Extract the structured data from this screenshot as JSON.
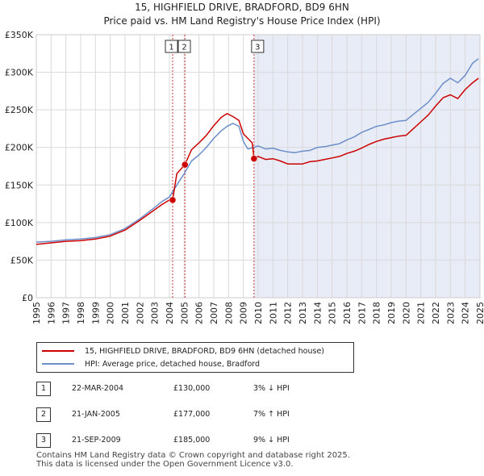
{
  "title_line1": "15, HIGHFIELD DRIVE, BRADFORD, BD9 6HN",
  "title_line2": "Price paid vs. HM Land Registry's House Price Index (HPI)",
  "legend": {
    "property": "15, HIGHFIELD DRIVE, BRADFORD, BD9 6HN (detached house)",
    "hpi": "HPI: Average price, detached house, Bradford"
  },
  "sales": [
    {
      "num": "1",
      "date": "22-MAR-2004",
      "price": "£130,000",
      "relation": "3% ↓ HPI"
    },
    {
      "num": "2",
      "date": "21-JAN-2005",
      "price": "£177,000",
      "relation": "7% ↑ HPI"
    },
    {
      "num": "3",
      "date": "21-SEP-2009",
      "price": "£185,000",
      "relation": "9% ↓ HPI"
    }
  ],
  "footer": {
    "line1": "Contains HM Land Registry data © Crown copyright and database right 2025.",
    "line2": "This data is licensed under the Open Government Licence v3.0."
  },
  "colors": {
    "property": "#cc0000",
    "hpi": "#6c8ec9",
    "shade": "#e8ecf7",
    "grid": "#d9d9d9",
    "marker_line": "#cc3333"
  },
  "chart_data": {
    "type": "line",
    "xlim": [
      1995,
      2025
    ],
    "ylim": [
      0,
      350000
    ],
    "ytick_values": [
      0,
      50000,
      100000,
      150000,
      200000,
      250000,
      300000,
      350000
    ],
    "ytick_labels": [
      "£0",
      "£50K",
      "£100K",
      "£150K",
      "£200K",
      "£250K",
      "£300K",
      "£350K"
    ],
    "xtick_values": [
      1995,
      1996,
      1997,
      1998,
      1999,
      2000,
      2001,
      2002,
      2003,
      2004,
      2005,
      2006,
      2007,
      2008,
      2009,
      2010,
      2011,
      2012,
      2013,
      2014,
      2015,
      2016,
      2017,
      2018,
      2019,
      2020,
      2021,
      2022,
      2023,
      2024,
      2025
    ],
    "xtick_labels": [
      "1995",
      "1996",
      "1997",
      "1998",
      "1999",
      "2000",
      "2001",
      "2002",
      "2003",
      "2004",
      "2005",
      "2006",
      "2007",
      "2008",
      "2009",
      "2010",
      "2011",
      "2012",
      "2013",
      "2014",
      "2015",
      "2016",
      "2017",
      "2018",
      "2019",
      "2020",
      "2021",
      "2022",
      "2023",
      "2024",
      "2025"
    ],
    "shaded_from_x": 2009.72,
    "sale_markers": [
      {
        "label": "1",
        "x": 2004.22,
        "y": 130000
      },
      {
        "label": "2",
        "x": 2005.05,
        "y": 177000
      },
      {
        "label": "3",
        "x": 2009.72,
        "y": 185000
      }
    ],
    "series": [
      {
        "name": "HPI: Average price, detached house, Bradford",
        "color": "#6c8ec9",
        "x": [
          1995.0,
          1996.0,
          1997.0,
          1998.0,
          1999.0,
          2000.0,
          2001.0,
          2002.0,
          2003.0,
          2003.5,
          2004.0,
          2004.5,
          2005.0,
          2005.5,
          2006.0,
          2006.5,
          2007.0,
          2007.5,
          2007.9,
          2008.3,
          2008.7,
          2009.0,
          2009.3,
          2009.7,
          2010.0,
          2010.5,
          2011.0,
          2011.5,
          2012.0,
          2012.5,
          2013.0,
          2013.5,
          2014.0,
          2014.5,
          2015.0,
          2015.5,
          2016.0,
          2016.5,
          2017.0,
          2017.5,
          2018.0,
          2018.5,
          2019.0,
          2019.5,
          2020.0,
          2020.5,
          2021.0,
          2021.5,
          2022.0,
          2022.5,
          2023.0,
          2023.5,
          2024.0,
          2024.5,
          2024.9
        ],
        "y": [
          74000,
          75000,
          77000,
          78000,
          80000,
          84000,
          92000,
          105000,
          120000,
          128000,
          134000,
          150000,
          165000,
          182000,
          190000,
          200000,
          212000,
          222000,
          228000,
          232000,
          228000,
          208000,
          198000,
          200000,
          202000,
          198000,
          199000,
          196000,
          194000,
          193000,
          195000,
          196000,
          200000,
          201000,
          203000,
          205000,
          210000,
          214000,
          220000,
          224000,
          228000,
          230000,
          233000,
          235000,
          236000,
          244000,
          252000,
          260000,
          272000,
          285000,
          292000,
          286000,
          296000,
          312000,
          318000
        ]
      },
      {
        "name": "15, HIGHFIELD DRIVE, BRADFORD, BD9 6HN (detached house)",
        "color": "#cc0000",
        "x": [
          1995.0,
          1996.0,
          1997.0,
          1998.0,
          1999.0,
          2000.0,
          2001.0,
          2002.0,
          2003.0,
          2003.5,
          2004.0,
          2004.22,
          2004.5,
          2005.0,
          2005.05,
          2005.5,
          2006.0,
          2006.5,
          2007.0,
          2007.5,
          2007.9,
          2008.3,
          2008.7,
          2009.0,
          2009.3,
          2009.6,
          2009.72,
          2010.0,
          2010.5,
          2011.0,
          2011.5,
          2012.0,
          2012.5,
          2013.0,
          2013.5,
          2014.0,
          2014.5,
          2015.0,
          2015.5,
          2016.0,
          2016.5,
          2017.0,
          2017.5,
          2018.0,
          2018.5,
          2019.0,
          2019.5,
          2020.0,
          2020.5,
          2021.0,
          2021.5,
          2022.0,
          2022.5,
          2023.0,
          2023.5,
          2024.0,
          2024.5,
          2024.9
        ],
        "y": [
          71000,
          73000,
          75000,
          76000,
          78000,
          82000,
          90000,
          103000,
          117000,
          124000,
          130000,
          130000,
          165000,
          176000,
          177000,
          197000,
          206000,
          216000,
          229000,
          240000,
          245000,
          241000,
          236000,
          218000,
          212000,
          206000,
          185000,
          188000,
          184000,
          185000,
          182000,
          178000,
          178000,
          178000,
          181000,
          182000,
          184000,
          186000,
          188000,
          192000,
          195000,
          199000,
          204000,
          208000,
          211000,
          213000,
          215000,
          216000,
          225000,
          234000,
          243000,
          255000,
          266000,
          270000,
          265000,
          277000,
          286000,
          292000
        ]
      }
    ]
  }
}
